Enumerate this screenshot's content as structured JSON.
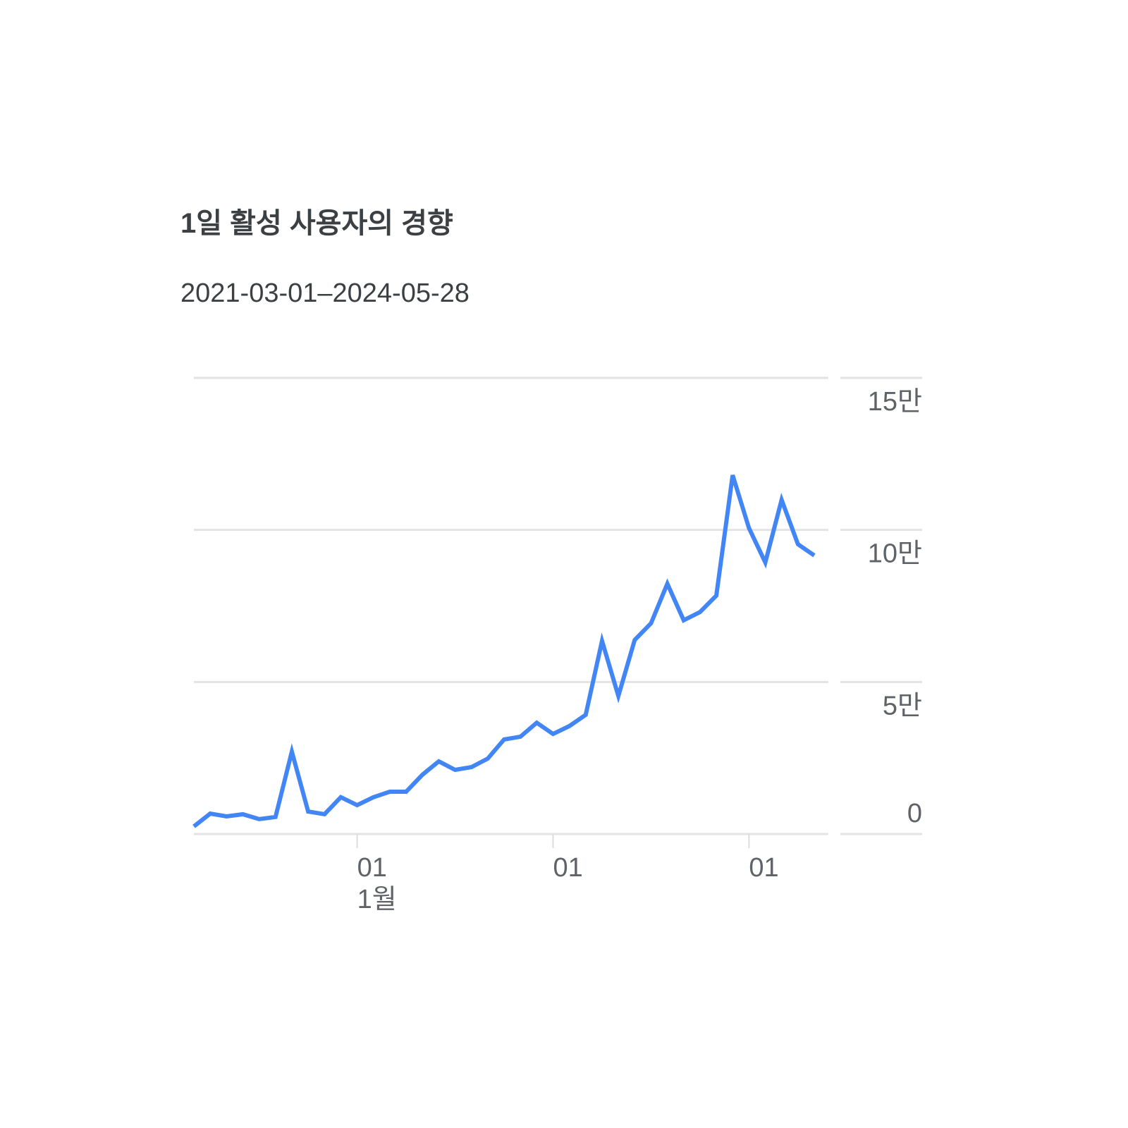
{
  "chart_data": {
    "type": "line",
    "title": "1일 활성 사용자의 경향",
    "subtitle": "2021-03-01–2024-05-28",
    "categories": [
      null,
      null,
      null,
      null,
      null,
      null,
      null,
      null,
      null,
      null,
      "01",
      null,
      null,
      null,
      null,
      null,
      null,
      null,
      null,
      null,
      null,
      null,
      "01",
      null,
      null,
      null,
      null,
      null,
      null,
      null,
      null,
      null,
      null,
      null,
      "01",
      null,
      null,
      null,
      null
    ],
    "category_sublabels": [
      null,
      null,
      null,
      null,
      null,
      null,
      null,
      null,
      null,
      null,
      "1월",
      null,
      null,
      null,
      null,
      null,
      null,
      null,
      null,
      null,
      null,
      null,
      null,
      null,
      null,
      null,
      null,
      null,
      null,
      null,
      null,
      null,
      null,
      null,
      null,
      null,
      null,
      null,
      null
    ],
    "series": [
      {
        "color": "#4285f4",
        "values": [
          2500,
          6700,
          5800,
          6500,
          4900,
          5600,
          27100,
          7400,
          6500,
          12100,
          9500,
          12100,
          13900,
          13900,
          19500,
          23900,
          21100,
          22000,
          24800,
          31100,
          32000,
          36600,
          32900,
          35500,
          39200,
          63500,
          45400,
          63800,
          69300,
          82300,
          70300,
          73000,
          78400,
          118000,
          100600,
          89300,
          109900,
          95300,
          91600
        ]
      }
    ],
    "ylim": [
      0,
      150000
    ],
    "yticks": [
      {
        "value": 150000,
        "label": "15만"
      },
      {
        "value": 100000,
        "label": "10만"
      },
      {
        "value": 50000,
        "label": "5만"
      },
      0
    ],
    "grid": true
  }
}
